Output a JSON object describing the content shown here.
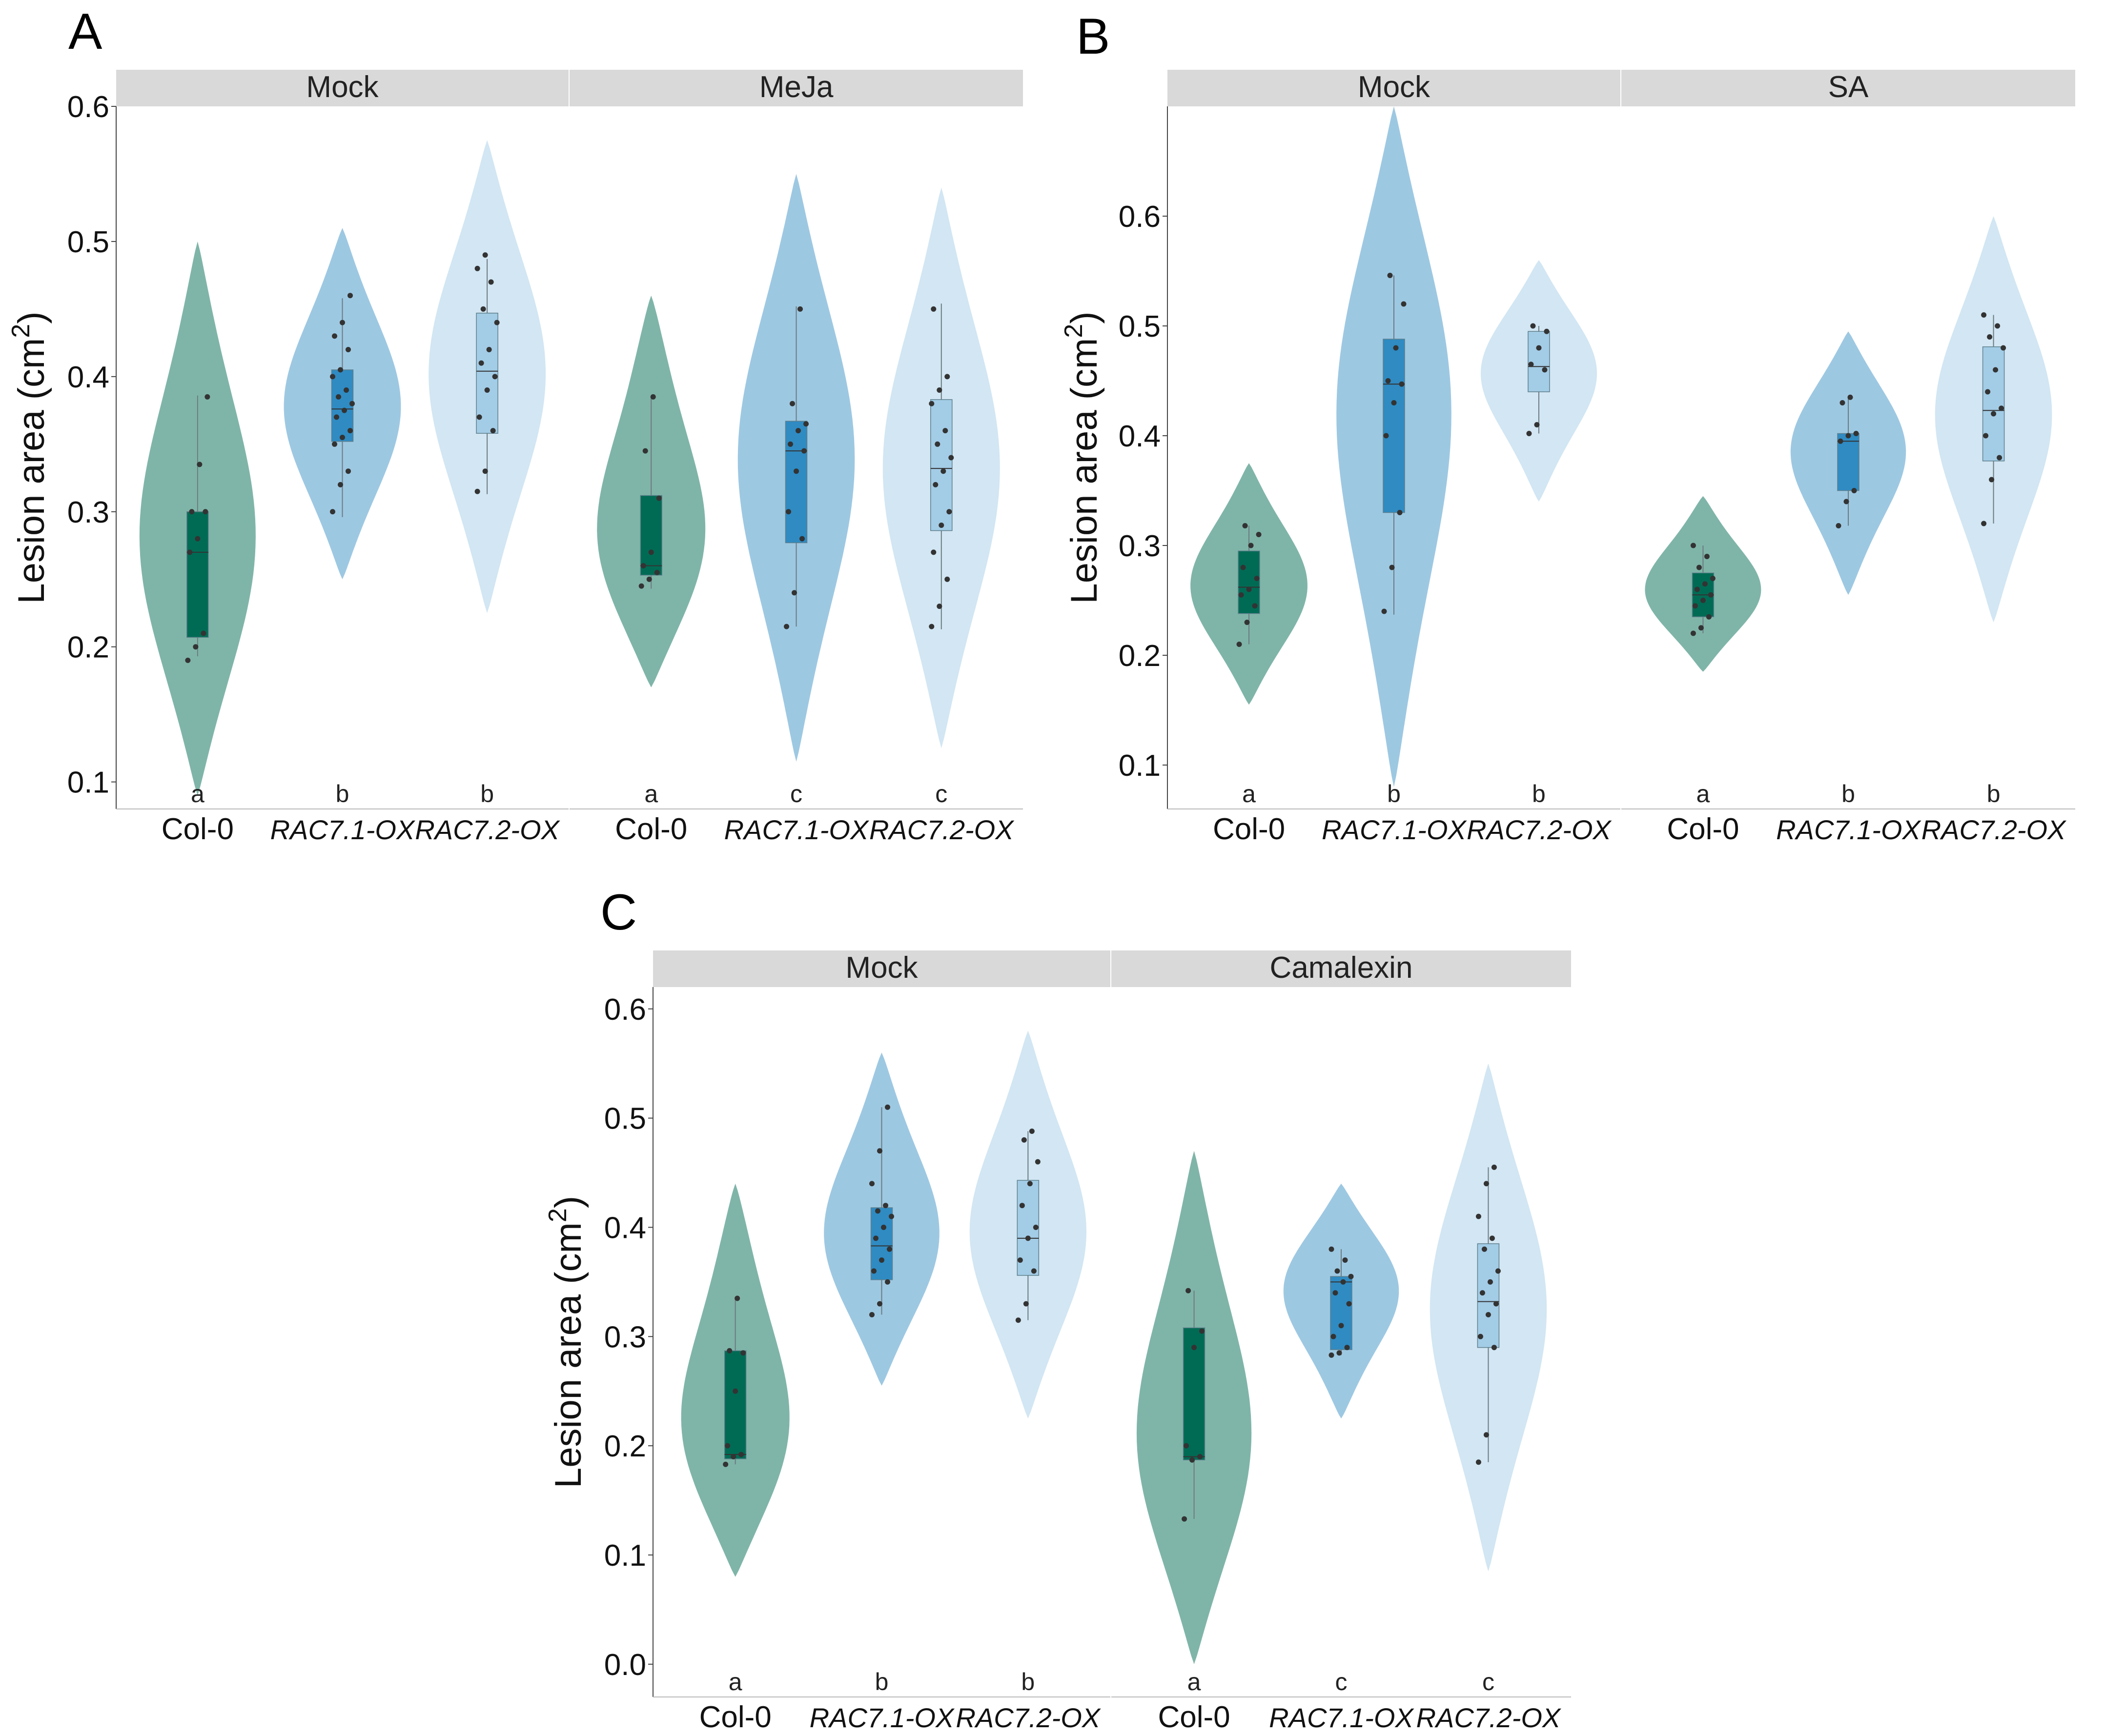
{
  "colors": {
    "col0_violin": "#7fb5a8",
    "col0_box": "#006b54",
    "rac71_violin": "#9dc8e2",
    "rac71_box": "#2f8bc2",
    "rac72_violin": "#d2e6f3",
    "rac72_box": "#a3cce6",
    "strip_bg": "#d9d9d9",
    "point": "#333333"
  },
  "ylabel_main": "Lesion area (cm",
  "ylabel_sup": "2",
  "ylabel_close": ")",
  "chart_data": [
    {
      "panel": "A",
      "type": "violin",
      "ylim": [
        0.08,
        0.6
      ],
      "yticks": [
        "0.1",
        "0.2",
        "0.3",
        "0.4",
        "0.5",
        "0.6"
      ],
      "facets": [
        {
          "name": "Mock",
          "groups": [
            {
              "label": "Col-0",
              "italic": false,
              "letter": "a",
              "q1": 0.207,
              "median": 0.27,
              "q3": 0.3,
              "wmin": 0.193,
              "wmax": 0.386,
              "vmin": 0.09,
              "vmax": 0.5,
              "points": [
                0.19,
                0.2,
                0.21,
                0.27,
                0.28,
                0.3,
                0.3,
                0.335,
                0.385
              ]
            },
            {
              "label": "RAC7.1-OX",
              "italic": true,
              "letter": "b",
              "q1": 0.352,
              "median": 0.376,
              "q3": 0.405,
              "wmin": 0.296,
              "wmax": 0.458,
              "vmin": 0.25,
              "vmax": 0.51,
              "points": [
                0.3,
                0.32,
                0.33,
                0.35,
                0.355,
                0.36,
                0.37,
                0.375,
                0.38,
                0.385,
                0.39,
                0.4,
                0.405,
                0.42,
                0.43,
                0.44,
                0.46
              ]
            },
            {
              "label": "RAC7.2-OX",
              "italic": true,
              "letter": "b",
              "q1": 0.358,
              "median": 0.404,
              "q3": 0.447,
              "wmin": 0.313,
              "wmax": 0.487,
              "vmin": 0.225,
              "vmax": 0.575,
              "points": [
                0.315,
                0.33,
                0.36,
                0.37,
                0.39,
                0.4,
                0.41,
                0.42,
                0.44,
                0.45,
                0.47,
                0.48,
                0.49
              ]
            }
          ]
        },
        {
          "name": "MeJa",
          "groups": [
            {
              "label": "Col-0",
              "italic": false,
              "letter": "a",
              "q1": 0.253,
              "median": 0.26,
              "q3": 0.312,
              "wmin": 0.243,
              "wmax": 0.385,
              "vmin": 0.17,
              "vmax": 0.46,
              "points": [
                0.245,
                0.25,
                0.255,
                0.26,
                0.27,
                0.31,
                0.345,
                0.385
              ]
            },
            {
              "label": "RAC7.1-OX",
              "italic": true,
              "letter": "c",
              "q1": 0.277,
              "median": 0.345,
              "q3": 0.367,
              "wmin": 0.215,
              "wmax": 0.452,
              "vmin": 0.115,
              "vmax": 0.55,
              "points": [
                0.215,
                0.24,
                0.28,
                0.3,
                0.33,
                0.345,
                0.35,
                0.36,
                0.365,
                0.38,
                0.45
              ]
            },
            {
              "label": "RAC7.2-OX",
              "italic": true,
              "letter": "c",
              "q1": 0.286,
              "median": 0.332,
              "q3": 0.383,
              "wmin": 0.213,
              "wmax": 0.454,
              "vmin": 0.125,
              "vmax": 0.54,
              "points": [
                0.215,
                0.23,
                0.25,
                0.27,
                0.29,
                0.3,
                0.32,
                0.33,
                0.34,
                0.35,
                0.36,
                0.38,
                0.39,
                0.4,
                0.45
              ]
            }
          ]
        }
      ]
    },
    {
      "panel": "B",
      "type": "violin",
      "ylim": [
        0.06,
        0.7
      ],
      "yticks": [
        "0.1",
        "0.2",
        "0.3",
        "0.4",
        "0.5",
        "0.6"
      ],
      "facets": [
        {
          "name": "Mock",
          "groups": [
            {
              "label": "Col-0",
              "italic": false,
              "letter": "a",
              "q1": 0.238,
              "median": 0.262,
              "q3": 0.295,
              "wmin": 0.21,
              "wmax": 0.318,
              "vmin": 0.155,
              "vmax": 0.375,
              "points": [
                0.21,
                0.23,
                0.245,
                0.255,
                0.26,
                0.27,
                0.28,
                0.3,
                0.31,
                0.318
              ]
            },
            {
              "label": "RAC7.1-OX",
              "italic": true,
              "letter": "b",
              "q1": 0.33,
              "median": 0.447,
              "q3": 0.488,
              "wmin": 0.237,
              "wmax": 0.546,
              "vmin": 0.08,
              "vmax": 0.7,
              "points": [
                0.24,
                0.28,
                0.33,
                0.4,
                0.43,
                0.447,
                0.45,
                0.48,
                0.52,
                0.546
              ]
            },
            {
              "label": "RAC7.2-OX",
              "italic": true,
              "letter": "b",
              "q1": 0.44,
              "median": 0.463,
              "q3": 0.495,
              "wmin": 0.402,
              "wmax": 0.5,
              "vmin": 0.34,
              "vmax": 0.56,
              "points": [
                0.402,
                0.41,
                0.46,
                0.465,
                0.48,
                0.495,
                0.5
              ]
            }
          ]
        },
        {
          "name": "SA",
          "groups": [
            {
              "label": "Col-0",
              "italic": false,
              "letter": "a",
              "q1": 0.235,
              "median": 0.255,
              "q3": 0.275,
              "wmin": 0.22,
              "wmax": 0.3,
              "vmin": 0.185,
              "vmax": 0.345,
              "points": [
                0.22,
                0.225,
                0.235,
                0.245,
                0.25,
                0.255,
                0.26,
                0.265,
                0.27,
                0.28,
                0.29,
                0.3
              ]
            },
            {
              "label": "RAC7.1-OX",
              "italic": true,
              "letter": "b",
              "q1": 0.35,
              "median": 0.395,
              "q3": 0.402,
              "wmin": 0.318,
              "wmax": 0.435,
              "vmin": 0.255,
              "vmax": 0.495,
              "points": [
                0.318,
                0.34,
                0.35,
                0.395,
                0.4,
                0.402,
                0.43,
                0.435
              ]
            },
            {
              "label": "RAC7.2-OX",
              "italic": true,
              "letter": "b",
              "q1": 0.377,
              "median": 0.423,
              "q3": 0.481,
              "wmin": 0.32,
              "wmax": 0.51,
              "vmin": 0.23,
              "vmax": 0.6,
              "points": [
                0.32,
                0.36,
                0.38,
                0.4,
                0.42,
                0.425,
                0.44,
                0.46,
                0.48,
                0.49,
                0.5,
                0.51
              ]
            }
          ]
        }
      ]
    },
    {
      "panel": "C",
      "type": "violin",
      "ylim": [
        -0.03,
        0.62
      ],
      "yticks": [
        "0.0",
        "0.1",
        "0.2",
        "0.3",
        "0.4",
        "0.5",
        "0.6"
      ],
      "facets": [
        {
          "name": "Mock",
          "groups": [
            {
              "label": "Col-0",
              "italic": false,
              "letter": "a",
              "q1": 0.188,
              "median": 0.192,
              "q3": 0.287,
              "wmin": 0.183,
              "wmax": 0.335,
              "vmin": 0.08,
              "vmax": 0.44,
              "points": [
                0.183,
                0.19,
                0.192,
                0.2,
                0.25,
                0.285,
                0.287,
                0.335
              ]
            },
            {
              "label": "RAC7.1-OX",
              "italic": true,
              "letter": "b",
              "q1": 0.352,
              "median": 0.383,
              "q3": 0.418,
              "wmin": 0.32,
              "wmax": 0.51,
              "vmin": 0.255,
              "vmax": 0.56,
              "points": [
                0.32,
                0.33,
                0.35,
                0.36,
                0.37,
                0.38,
                0.39,
                0.4,
                0.41,
                0.415,
                0.42,
                0.44,
                0.47,
                0.51
              ]
            },
            {
              "label": "RAC7.2-OX",
              "italic": true,
              "letter": "b",
              "q1": 0.356,
              "median": 0.39,
              "q3": 0.443,
              "wmin": 0.315,
              "wmax": 0.488,
              "vmin": 0.225,
              "vmax": 0.58,
              "points": [
                0.315,
                0.33,
                0.36,
                0.37,
                0.39,
                0.4,
                0.42,
                0.44,
                0.46,
                0.48,
                0.488
              ]
            }
          ]
        },
        {
          "name": "Camalexin",
          "groups": [
            {
              "label": "Col-0",
              "italic": false,
              "letter": "a",
              "q1": 0.187,
              "median": 0.19,
              "q3": 0.308,
              "wmin": 0.133,
              "wmax": 0.342,
              "vmin": 0.0,
              "vmax": 0.47,
              "points": [
                0.133,
                0.187,
                0.19,
                0.2,
                0.29,
                0.305,
                0.342
              ]
            },
            {
              "label": "RAC7.1-OX",
              "italic": true,
              "letter": "c",
              "q1": 0.288,
              "median": 0.35,
              "q3": 0.355,
              "wmin": 0.283,
              "wmax": 0.38,
              "vmin": 0.225,
              "vmax": 0.44,
              "points": [
                0.283,
                0.285,
                0.29,
                0.3,
                0.31,
                0.33,
                0.34,
                0.35,
                0.355,
                0.36,
                0.37,
                0.38
              ]
            },
            {
              "label": "RAC7.2-OX",
              "italic": true,
              "letter": "c",
              "q1": 0.29,
              "median": 0.332,
              "q3": 0.385,
              "wmin": 0.185,
              "wmax": 0.455,
              "vmin": 0.085,
              "vmax": 0.55,
              "points": [
                0.185,
                0.21,
                0.29,
                0.3,
                0.32,
                0.33,
                0.34,
                0.35,
                0.36,
                0.38,
                0.39,
                0.41,
                0.44,
                0.455
              ]
            }
          ]
        }
      ]
    }
  ]
}
